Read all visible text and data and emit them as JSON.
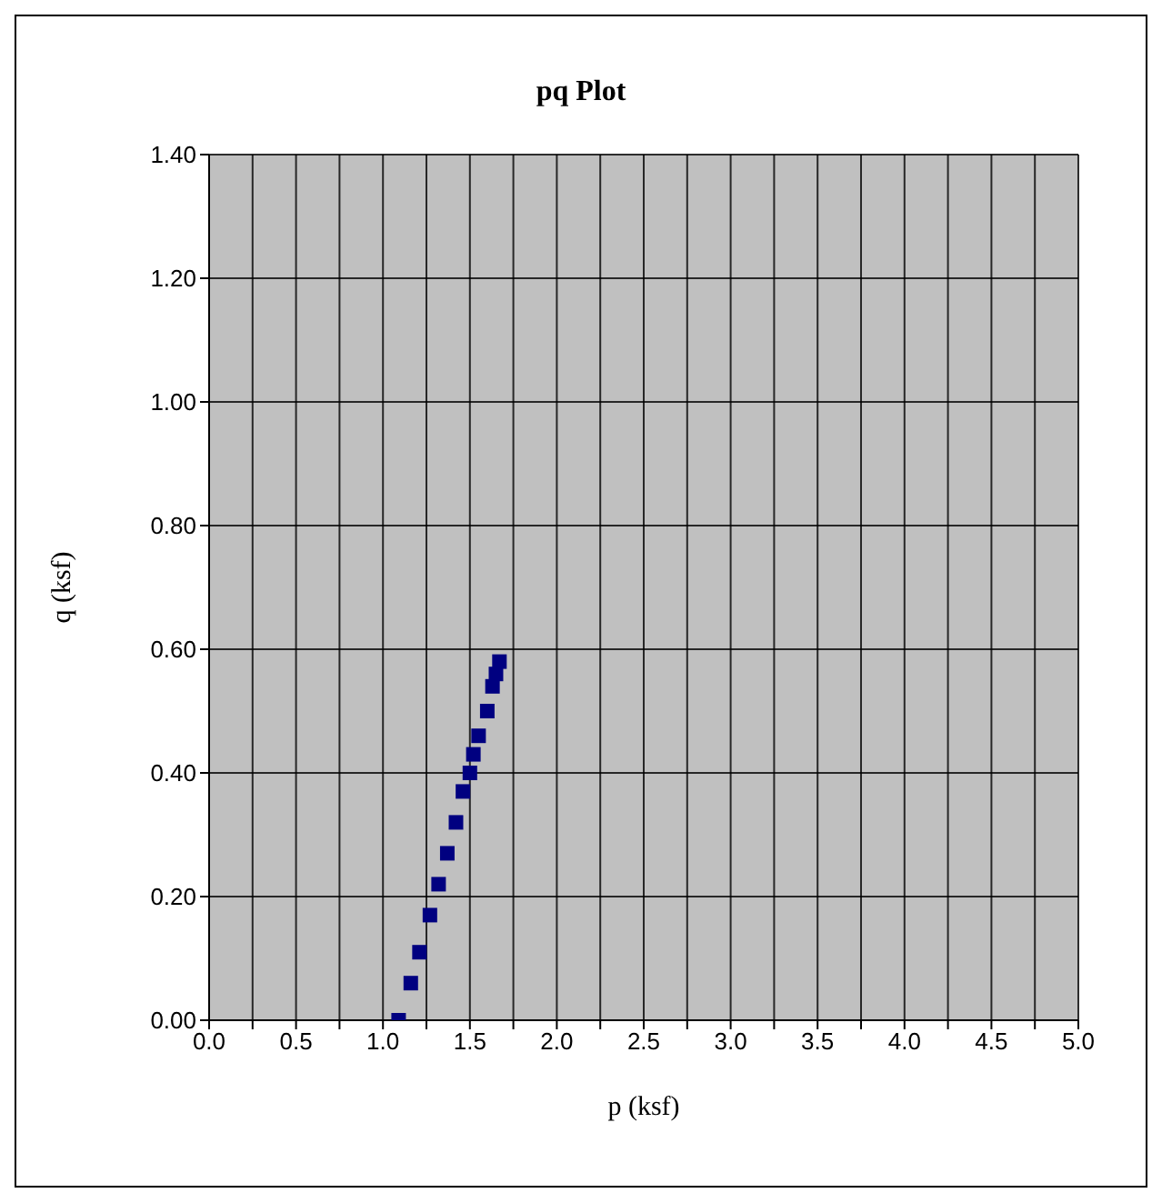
{
  "chart_data": {
    "type": "scatter",
    "title": "pq Plot",
    "xlabel": "p (ksf)",
    "ylabel": "q (ksf)",
    "x": [
      1.09,
      1.16,
      1.21,
      1.27,
      1.32,
      1.37,
      1.42,
      1.46,
      1.5,
      1.52,
      1.55,
      1.6,
      1.63,
      1.65,
      1.67
    ],
    "series": [
      {
        "color": "#000080",
        "values": [
          0.0,
          0.06,
          0.11,
          0.17,
          0.22,
          0.27,
          0.32,
          0.37,
          0.4,
          0.43,
          0.46,
          0.5,
          0.54,
          0.56,
          0.58
        ]
      }
    ],
    "xlim": [
      0,
      5
    ],
    "xticks": [
      {
        "value": 0,
        "label": "0.0"
      },
      {
        "value": 0.25,
        "label": null
      },
      {
        "value": 0.5,
        "label": "0.5"
      },
      {
        "value": 0.75,
        "label": null
      },
      {
        "value": 1,
        "label": "1.0"
      },
      {
        "value": 1.25,
        "label": null
      },
      {
        "value": 1.5,
        "label": "1.5"
      },
      {
        "value": 1.75,
        "label": null
      },
      {
        "value": 2,
        "label": "2.0"
      },
      {
        "value": 2.25,
        "label": null
      },
      {
        "value": 2.5,
        "label": "2.5"
      },
      {
        "value": 2.75,
        "label": null
      },
      {
        "value": 3,
        "label": "3.0"
      },
      {
        "value": 3.25,
        "label": null
      },
      {
        "value": 3.5,
        "label": "3.5"
      },
      {
        "value": 3.75,
        "label": null
      },
      {
        "value": 4,
        "label": "4.0"
      },
      {
        "value": 4.25,
        "label": null
      },
      {
        "value": 4.5,
        "label": "4.5"
      },
      {
        "value": 4.75,
        "label": null
      },
      {
        "value": 5,
        "label": "5.0"
      }
    ],
    "ylim": [
      0,
      1.4
    ],
    "yticks": [
      {
        "value": 0,
        "label": "0.00"
      },
      {
        "value": 0.2,
        "label": "0.20"
      },
      {
        "value": 0.4,
        "label": "0.40"
      },
      {
        "value": 0.6,
        "label": "0.60"
      },
      {
        "value": 0.8,
        "label": "0.80"
      },
      {
        "value": 1,
        "label": "1.00"
      },
      {
        "value": 1.2,
        "label": "1.20"
      },
      {
        "value": 1.4,
        "label": "1.40"
      }
    ],
    "grid": true,
    "marker": "square",
    "legend": false
  }
}
